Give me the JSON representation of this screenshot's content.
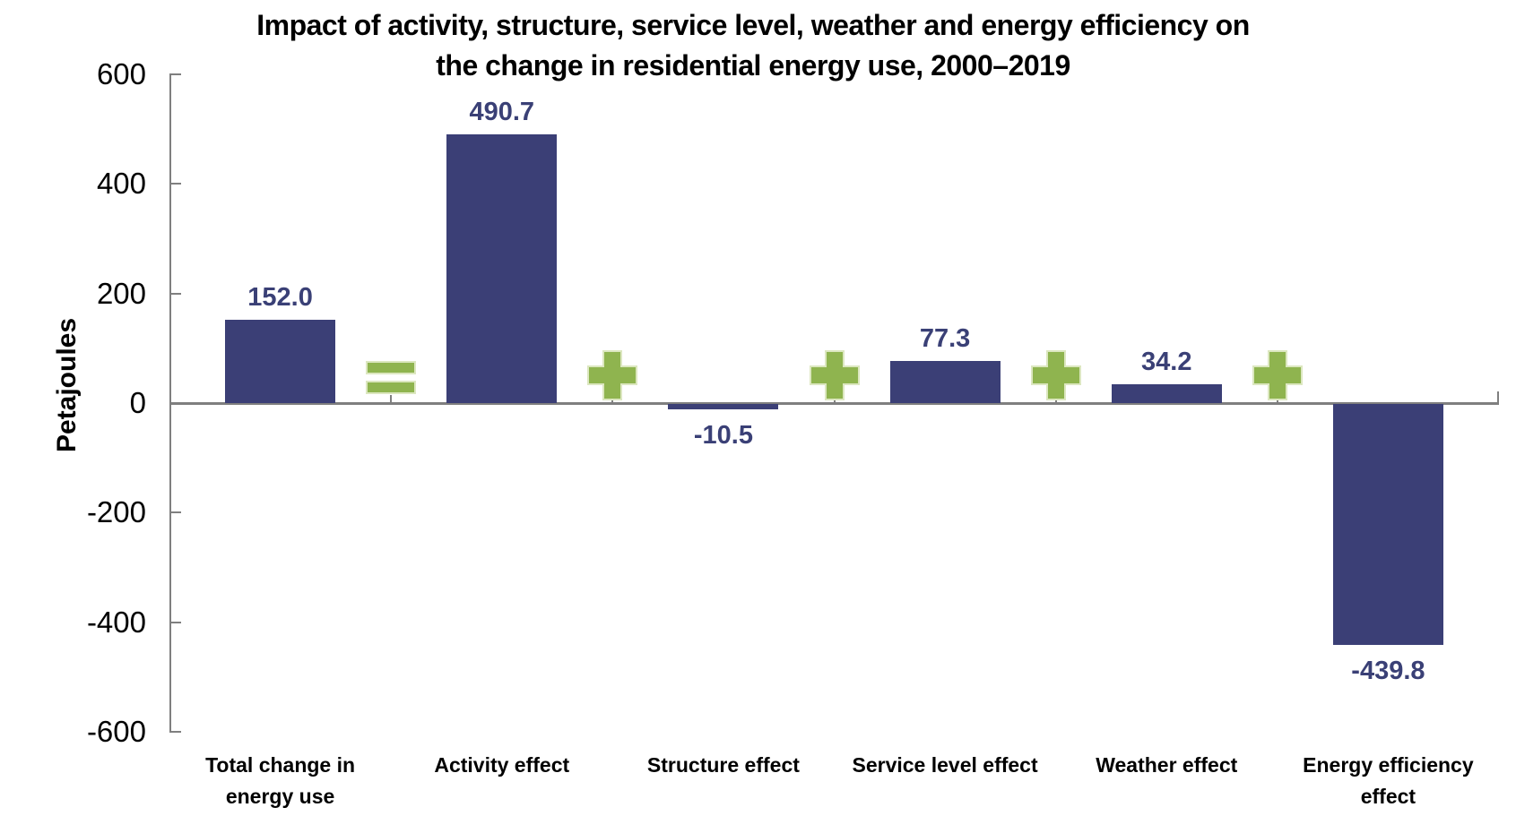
{
  "page": {
    "background": "#FFFFFF"
  },
  "chart_data": {
    "type": "bar",
    "subtype": "decomposition-waterfall",
    "title": "Impact of activity, structure, service level, weather and energy efficiency on the change in residential energy use, 2000–2019",
    "title_lines": [
      "Impact of activity, structure, service level, weather and energy efficiency on",
      "the change in residential energy use, 2000–2019"
    ],
    "ylabel": "Petajoules",
    "xlabel": "",
    "categories": [
      "Total change in energy use",
      "Activity effect",
      "Structure effect",
      "Service level effect",
      "Weather effect",
      "Energy efficiency effect"
    ],
    "category_label_lines": [
      "Total change in\nenergy use",
      "Activity effect",
      "Structure effect",
      "Service level effect",
      "Weather effect",
      "Energy efficiency\neffect"
    ],
    "values": [
      152.0,
      490.7,
      -10.5,
      77.3,
      34.2,
      -439.8
    ],
    "value_labels": [
      "152.0",
      "490.7",
      "-10.5",
      "77.3",
      "34.2",
      "-439.8"
    ],
    "operators_between_bars": [
      "=",
      "+",
      "+",
      "+",
      "+"
    ],
    "yticks": [
      600,
      400,
      200,
      0,
      -200,
      -400,
      -600
    ],
    "ylim": [
      -600,
      600
    ],
    "grid": false,
    "legend": false,
    "colors": {
      "bar": "#3B3F76",
      "value_label": "#3A4076",
      "operator_fill": "#8FB44F",
      "operator_outline": "#DCE7C0",
      "axis": "#7F7F7F",
      "text": "#000000"
    }
  }
}
